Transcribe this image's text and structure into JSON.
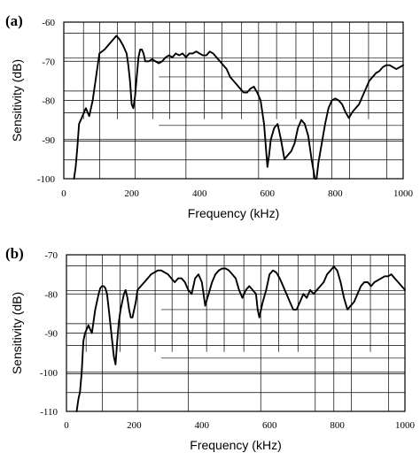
{
  "chart_data": [
    {
      "panel_label": "(a)",
      "type": "line",
      "xlabel": "Frequency (kHz)",
      "ylabel": "Sensitivity (dB)",
      "xlim": [
        0,
        1000
      ],
      "ylim": [
        -100,
        -60
      ],
      "x_ticks": [
        0,
        200,
        400,
        600,
        800,
        1000
      ],
      "y_ticks": [
        -100,
        -90,
        -80,
        -70,
        -60
      ],
      "grid": true,
      "series": [
        {
          "x": [
            30,
            35,
            40,
            45,
            55,
            65,
            70,
            75,
            85,
            95,
            105,
            120,
            140,
            150,
            155,
            165,
            175,
            185,
            190,
            195,
            200,
            205,
            210,
            215,
            220,
            225,
            230,
            235,
            240,
            250,
            260,
            270,
            280,
            290,
            300,
            310,
            320,
            330,
            340,
            350,
            360,
            370,
            380,
            390,
            400,
            410,
            420,
            430,
            440,
            450,
            460,
            470,
            480,
            490,
            500,
            510,
            520,
            530,
            540,
            550,
            560,
            570,
            580,
            590,
            600,
            605,
            610,
            620,
            630,
            640,
            650,
            660,
            670,
            680,
            690,
            700,
            710,
            720,
            730,
            740,
            745,
            750,
            760,
            770,
            780,
            790,
            800,
            810,
            820,
            830,
            840,
            850,
            860,
            870,
            880,
            890,
            900,
            910,
            920,
            930,
            940,
            950,
            960,
            970,
            980,
            990,
            1000
          ],
          "y": [
            -100,
            -97,
            -92,
            -86,
            -84,
            -82,
            -83,
            -84,
            -80,
            -74,
            -68,
            -67,
            -65,
            -64,
            -63.5,
            -64.5,
            -66,
            -68,
            -71,
            -75,
            -81,
            -82,
            -79,
            -74,
            -69,
            -67,
            -67,
            -68,
            -70,
            -70,
            -69.5,
            -70,
            -70.5,
            -70,
            -69,
            -68.5,
            -69,
            -68,
            -68.5,
            -68,
            -69,
            -68,
            -68,
            -67.5,
            -68,
            -68.5,
            -68.5,
            -67.5,
            -68,
            -69,
            -70,
            -71,
            -72,
            -74,
            -75,
            -76,
            -77,
            -78,
            -78,
            -77,
            -76.5,
            -78,
            -80,
            -86,
            -97,
            -94,
            -90,
            -87,
            -86,
            -90,
            -95,
            -94,
            -93,
            -91,
            -87,
            -85,
            -86,
            -89,
            -95,
            -100,
            -100,
            -96,
            -91,
            -86,
            -82,
            -80,
            -79.5,
            -80,
            -81,
            -83,
            -84.5,
            -83,
            -82,
            -81,
            -79,
            -77,
            -75,
            -74,
            -73,
            -72.5,
            -71.5,
            -71,
            -71,
            -71.5,
            -72,
            -71.5,
            -71
          ]
        }
      ]
    },
    {
      "panel_label": "(b)",
      "type": "line",
      "xlabel": "Frequency (kHz)",
      "ylabel": "Sensitivity (dB)",
      "xlim": [
        0,
        1000
      ],
      "ylim": [
        -110,
        -70
      ],
      "x_ticks": [
        0,
        200,
        400,
        600,
        800,
        1000
      ],
      "y_ticks": [
        -110,
        -100,
        -90,
        -80,
        -70
      ],
      "grid": true,
      "series": [
        {
          "x": [
            30,
            35,
            40,
            45,
            50,
            55,
            60,
            65,
            70,
            75,
            80,
            85,
            90,
            95,
            100,
            105,
            110,
            115,
            120,
            125,
            130,
            135,
            140,
            145,
            150,
            155,
            160,
            165,
            170,
            175,
            180,
            185,
            190,
            195,
            200,
            205,
            210,
            220,
            230,
            240,
            250,
            260,
            270,
            280,
            290,
            300,
            310,
            320,
            330,
            340,
            350,
            360,
            370,
            380,
            390,
            400,
            410,
            420,
            430,
            440,
            450,
            460,
            470,
            480,
            490,
            500,
            510,
            520,
            530,
            540,
            550,
            560,
            565,
            570,
            575,
            580,
            590,
            600,
            610,
            620,
            630,
            640,
            650,
            660,
            670,
            680,
            690,
            700,
            710,
            720,
            730,
            740,
            750,
            760,
            770,
            780,
            790,
            800,
            810,
            820,
            830,
            840,
            850,
            860,
            870,
            880,
            890,
            900,
            910,
            920,
            930,
            940,
            950,
            960,
            970,
            980,
            990,
            1000
          ],
          "y": [
            -110,
            -107,
            -105,
            -100,
            -92,
            -90,
            -89,
            -88,
            -89,
            -90,
            -87,
            -84,
            -82,
            -80,
            -78.5,
            -78,
            -78,
            -78.5,
            -80,
            -84,
            -88,
            -92,
            -96,
            -98,
            -92,
            -87,
            -84,
            -82,
            -80,
            -79,
            -81,
            -84,
            -86,
            -86,
            -84,
            -82,
            -79,
            -78,
            -77,
            -76,
            -75,
            -74.5,
            -74,
            -74,
            -74.5,
            -75,
            -76,
            -77,
            -76,
            -76,
            -77,
            -79,
            -80,
            -76,
            -75,
            -77,
            -83,
            -80,
            -77,
            -75,
            -74,
            -73.5,
            -73.5,
            -74,
            -75,
            -76,
            -79,
            -81,
            -79,
            -78,
            -79,
            -80,
            -84,
            -86,
            -84,
            -82,
            -79,
            -75,
            -74,
            -74.5,
            -76,
            -78,
            -80,
            -82,
            -84,
            -84,
            -82,
            -80,
            -81,
            -79,
            -80,
            -79,
            -78,
            -77,
            -75,
            -74,
            -73,
            -74,
            -77,
            -81,
            -84,
            -83,
            -82,
            -80,
            -78,
            -77,
            -77,
            -78,
            -77,
            -76.5,
            -76,
            -75.5,
            -75.5,
            -75,
            -76,
            -77,
            -78,
            -79
          ]
        }
      ]
    }
  ]
}
